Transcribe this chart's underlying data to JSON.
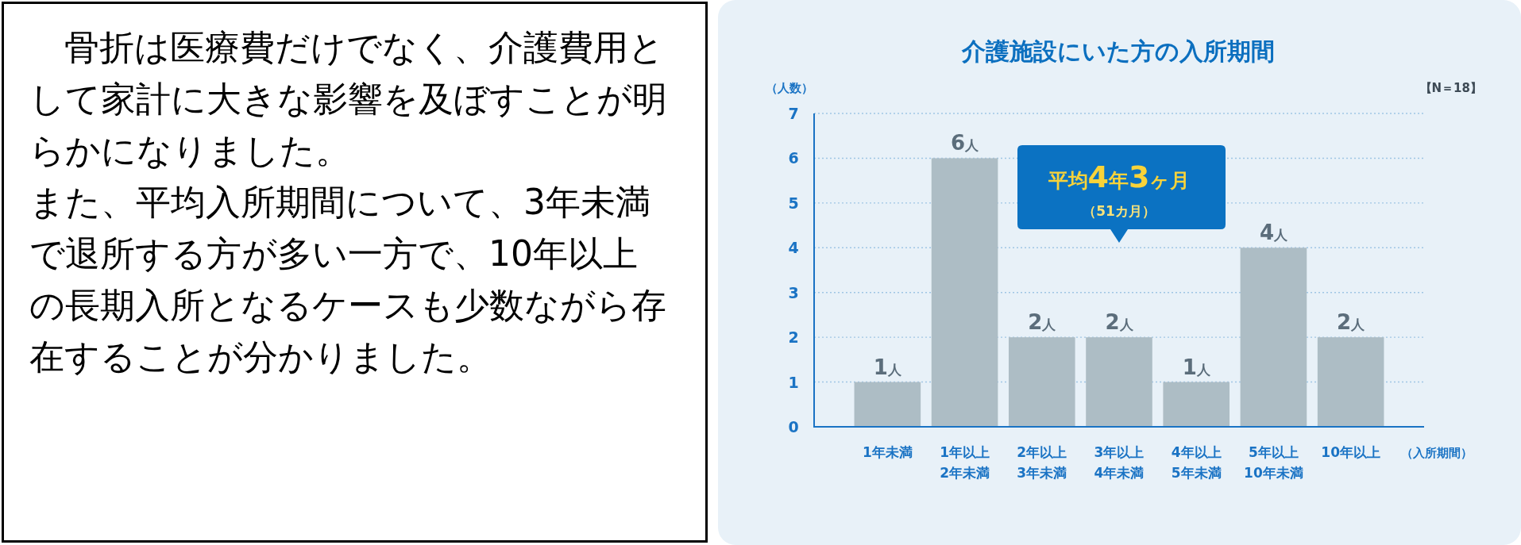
{
  "chart_data": [
    {
      "type": "other",
      "annotations": [
        "骨折は医療費だけでなく、介護費用として家計に大きな影響を及ぼすことが明らかになりました。",
        "また、平均入所期間について、3年未満で退所する方が多い一方で、10年以上の長期入所となるケースも少数ながら存在することが分かりました。"
      ]
    },
    {
      "type": "bar",
      "title": "介護施設にいた方の入所期間",
      "ylabel": "（人数）",
      "xlabel": "（入所期間）",
      "categories": [
        "1年未満",
        "1年以上\n2年未満",
        "2年以上\n3年未満",
        "3年以上\n4年未満",
        "4年以上\n5年未満",
        "5年以上\n10年未満",
        "10年以上"
      ],
      "values": [
        1,
        6,
        2,
        2,
        1,
        4,
        2
      ],
      "value_labels": [
        "1人",
        "6人",
        "2人",
        "2人",
        "1人",
        "4人",
        "2人"
      ],
      "color": "#adbdc5",
      "ylim": [
        0,
        7
      ],
      "yticks": [
        0,
        1,
        2,
        3,
        4,
        5,
        6,
        7
      ],
      "grid": "y",
      "annotations": [
        "【N＝18】",
        "平均4年3ヶ月",
        "（51カ月）"
      ]
    }
  ]
}
